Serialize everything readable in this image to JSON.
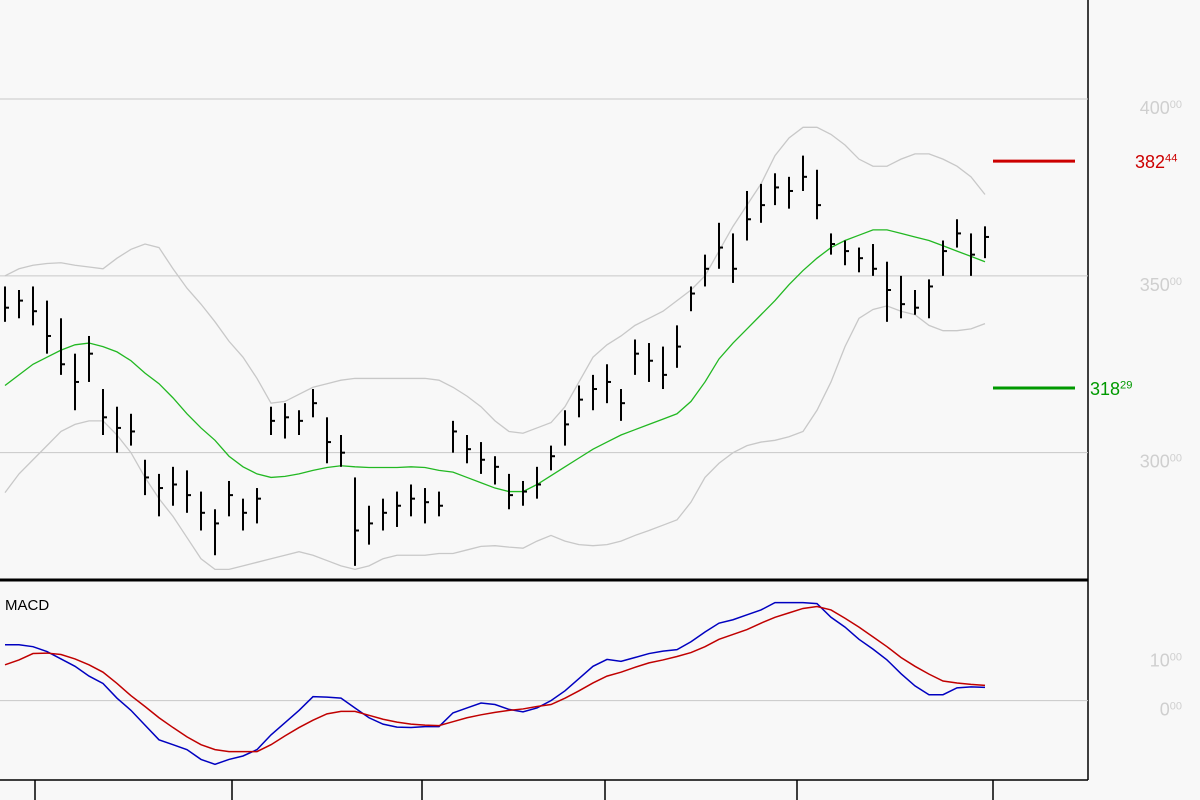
{
  "chart_data": [
    {
      "type": "ohlc",
      "color": "#000000",
      "high": [
        347,
        346,
        347,
        343,
        338,
        328,
        333,
        318,
        313,
        311,
        298,
        294,
        296,
        295,
        289,
        284,
        292,
        287,
        290,
        313,
        314,
        312,
        318,
        310,
        305,
        293,
        285,
        287,
        289,
        291,
        290,
        289,
        309,
        305,
        303,
        299,
        294,
        292,
        296,
        302,
        312,
        319,
        322,
        325,
        318,
        332,
        331,
        330,
        336,
        347,
        356,
        365,
        362,
        374,
        376,
        379,
        378,
        384,
        380,
        362,
        360,
        358,
        359,
        354,
        350,
        346,
        349,
        360,
        366,
        362,
        364
      ],
      "low": [
        337,
        338,
        336,
        328,
        322,
        312,
        320,
        305,
        300,
        302,
        288,
        282,
        285,
        283,
        278,
        271,
        282,
        278,
        280,
        305,
        304,
        305,
        310,
        297,
        296,
        268,
        274,
        278,
        279,
        282,
        280,
        282,
        300,
        297,
        294,
        291,
        284,
        285,
        287,
        295,
        302,
        310,
        312,
        314,
        309,
        322,
        320,
        318,
        324,
        340,
        347,
        352,
        348,
        360,
        365,
        370,
        369,
        374,
        366,
        356,
        353,
        351,
        350,
        337,
        338,
        339,
        338,
        350,
        358,
        350,
        355
      ],
      "close": [
        341,
        343,
        340,
        333,
        325,
        320,
        328,
        310,
        307,
        306,
        293,
        290,
        291,
        288,
        283,
        280,
        288,
        283,
        287,
        309,
        310,
        309,
        314,
        303,
        300,
        278,
        280,
        283,
        285,
        287,
        286,
        285,
        306,
        301,
        298,
        296,
        288,
        289,
        291,
        299,
        308,
        315,
        318,
        320,
        314,
        328,
        326,
        322,
        330,
        345,
        352,
        358,
        352,
        366,
        370,
        375,
        374,
        378,
        370,
        359,
        357,
        355,
        352,
        346,
        342,
        341,
        347,
        357,
        362,
        356,
        361
      ],
      "overlays": [
        {
          "color": "#22b822",
          "values": [
            319,
            322,
            325,
            327,
            329,
            330.5,
            331,
            330,
            328.5,
            326,
            322.5,
            319.5,
            315.5,
            311,
            307,
            303.5,
            299,
            296,
            294,
            293,
            293.3,
            294,
            295,
            295.8,
            296.3,
            296,
            295.8,
            295.8,
            295.8,
            296,
            295.8,
            295,
            294.5,
            293,
            291.5,
            290,
            289,
            289,
            291,
            293.5,
            296,
            298.5,
            301,
            303,
            305,
            306.5,
            308,
            309.5,
            311,
            314.5,
            320,
            326.5,
            331,
            335,
            339,
            343,
            347.5,
            351.5,
            355,
            358,
            360,
            361.5,
            363,
            363,
            362,
            361,
            360,
            358.5,
            357,
            355.5,
            354
          ]
        },
        {
          "color": "#c8c8c8",
          "values": [
            350,
            352,
            353,
            353.5,
            353.7,
            353,
            352.5,
            352,
            355,
            357.5,
            359,
            358,
            352,
            346.5,
            342,
            337,
            331.5,
            327,
            321,
            314,
            314.5,
            316.5,
            318.5,
            319.5,
            320.5,
            321,
            321,
            321,
            321,
            321,
            321,
            320.5,
            318.5,
            316,
            313,
            309,
            306,
            305.5,
            307,
            308.5,
            313,
            320,
            327,
            330.5,
            333,
            336,
            338,
            340,
            343,
            346,
            350,
            357,
            364,
            370,
            376,
            384,
            389,
            392,
            392,
            390,
            387,
            383,
            381,
            381,
            383,
            384.5,
            384.5,
            383,
            381,
            378,
            373
          ]
        },
        {
          "color": "#c8c8c8",
          "values": [
            288.7,
            294,
            298,
            302,
            306,
            308,
            309,
            309,
            305,
            300,
            293,
            287,
            282,
            276,
            270,
            267,
            267,
            268,
            269,
            270,
            271,
            272,
            271,
            269.5,
            268,
            267,
            268,
            270,
            271,
            271,
            271,
            271.5,
            271.5,
            272.5,
            273.5,
            273.7,
            273.3,
            273,
            275,
            276.6,
            275,
            274,
            273.7,
            274,
            275,
            276.6,
            278,
            279.5,
            281,
            286,
            293,
            297,
            300,
            302,
            303,
            303.5,
            304.5,
            306,
            312,
            320,
            330,
            338,
            340.5,
            341.5,
            340,
            339,
            336,
            334.5,
            334.5,
            335,
            336.5
          ]
        }
      ],
      "ylim": [
        264,
        428
      ],
      "yticks": [
        {
          "value": 300,
          "label": "300",
          "decimals": "00"
        },
        {
          "value": 350,
          "label": "350",
          "decimals": "00"
        },
        {
          "value": 400,
          "label": "400",
          "decimals": "00"
        }
      ],
      "grid": true,
      "levels": [
        {
          "value": 382.44,
          "label": "382",
          "decimals": "44",
          "color": "#cc0000"
        },
        {
          "value": 318.29,
          "label": "318",
          "decimals": "29",
          "color": "#009900"
        }
      ]
    },
    {
      "type": "line",
      "title": "MACD",
      "series": [
        {
          "color": "#0000c0",
          "values": [
            11.4,
            11.4,
            11,
            10,
            8.5,
            7,
            5,
            3.5,
            0.5,
            -2,
            -5,
            -8,
            -9,
            -10,
            -12,
            -13,
            -12,
            -11.3,
            -10,
            -7,
            -4.5,
            -2,
            0.8,
            0.7,
            0.5,
            -1.5,
            -3.5,
            -4.8,
            -5.4,
            -5.5,
            -5.3,
            -5.3,
            -2.5,
            -1.5,
            -0.5,
            -0.8,
            -1.8,
            -2.3,
            -1.5,
            0,
            2,
            4.5,
            7,
            8.4,
            8,
            8.8,
            9.6,
            10.1,
            10.4,
            12,
            14,
            15.8,
            16.5,
            17.5,
            18.5,
            20,
            20,
            20,
            19.8,
            17,
            15,
            12.5,
            10.5,
            8.3,
            5.5,
            3,
            1.2,
            1.2,
            2.6,
            2.8,
            2.7
          ]
        },
        {
          "color": "#c00000",
          "values": [
            7.3,
            8.3,
            9.6,
            9.7,
            9.4,
            8.5,
            7.3,
            5.8,
            3.5,
            1,
            -1.2,
            -3.5,
            -5.5,
            -7.4,
            -9,
            -10,
            -10.4,
            -10.4,
            -10.4,
            -9,
            -7.2,
            -5.5,
            -4,
            -2.7,
            -2.2,
            -2.2,
            -3,
            -3.8,
            -4.4,
            -4.8,
            -5,
            -5.1,
            -4.3,
            -3.5,
            -2.9,
            -2.4,
            -2,
            -1.7,
            -1.2,
            -0.8,
            0.5,
            2,
            3.6,
            5,
            5.8,
            6.8,
            7.7,
            8.3,
            9,
            9.8,
            11,
            12.5,
            13.5,
            14.5,
            15.8,
            17,
            17.9,
            18.8,
            19.2,
            18.5,
            16.8,
            15,
            13,
            11,
            8.8,
            7,
            5.4,
            4,
            3.6,
            3.3,
            3.1
          ]
        }
      ],
      "ylim": [
        -16.2,
        24.2
      ],
      "yticks": [
        {
          "value": 0,
          "label": "0",
          "decimals": "00"
        },
        {
          "value": 10,
          "label": "10",
          "decimals": "00"
        }
      ],
      "hlines": [
        0
      ]
    }
  ]
}
